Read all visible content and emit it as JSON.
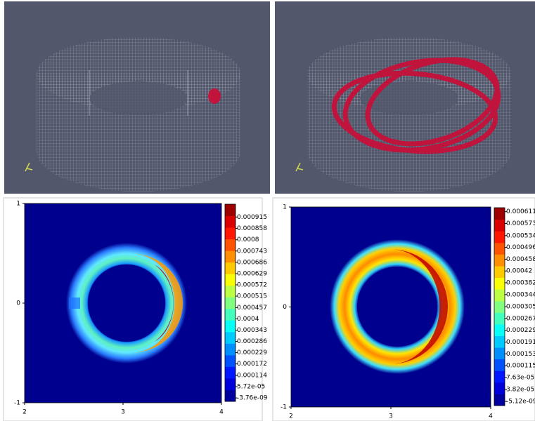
{
  "chart_data": [
    {
      "type": "heatmap",
      "xlim": [
        2,
        4
      ],
      "ylim": [
        -1,
        1
      ],
      "xticks": [
        2,
        3,
        4
      ],
      "yticks": [
        -1,
        0,
        1
      ],
      "colorbar": {
        "clim": [
          -1.72e-05,
          0.00098
        ],
        "ticks": [
          0.000915,
          0.000858,
          0.0008,
          0.000743,
          0.000686,
          0.000629,
          0.000572,
          0.000515,
          0.000457,
          0.0004,
          0.000343,
          0.000286,
          0.000229,
          0.000172,
          0.000114,
          {
            "value": 5.72e-05,
            "label": "5.72e-05"
          },
          {
            "value": -3.76e-09,
            "label": "-3.76e-09"
          }
        ]
      }
    },
    {
      "type": "heatmap",
      "xlim": [
        2,
        4
      ],
      "ylim": [
        -1,
        1
      ],
      "xticks": [
        2,
        3,
        4
      ],
      "yticks": [
        -1,
        0,
        1
      ],
      "colorbar": {
        "clim": [
          -1.36e-05,
          0.000624
        ],
        "ticks": [
          0.000611,
          0.000573,
          0.000534,
          0.000496,
          0.000458,
          0.00042,
          0.000382,
          0.000344,
          0.000305,
          0.000267,
          0.000229,
          0.000191,
          0.000153,
          0.000115,
          {
            "value": 7.63e-05,
            "label": "7.63e-05"
          },
          {
            "value": 3.82e-05,
            "label": "3.82e-05"
          },
          {
            "value": -5.12e-09,
            "label": "-5.12e-09"
          }
        ]
      }
    }
  ]
}
